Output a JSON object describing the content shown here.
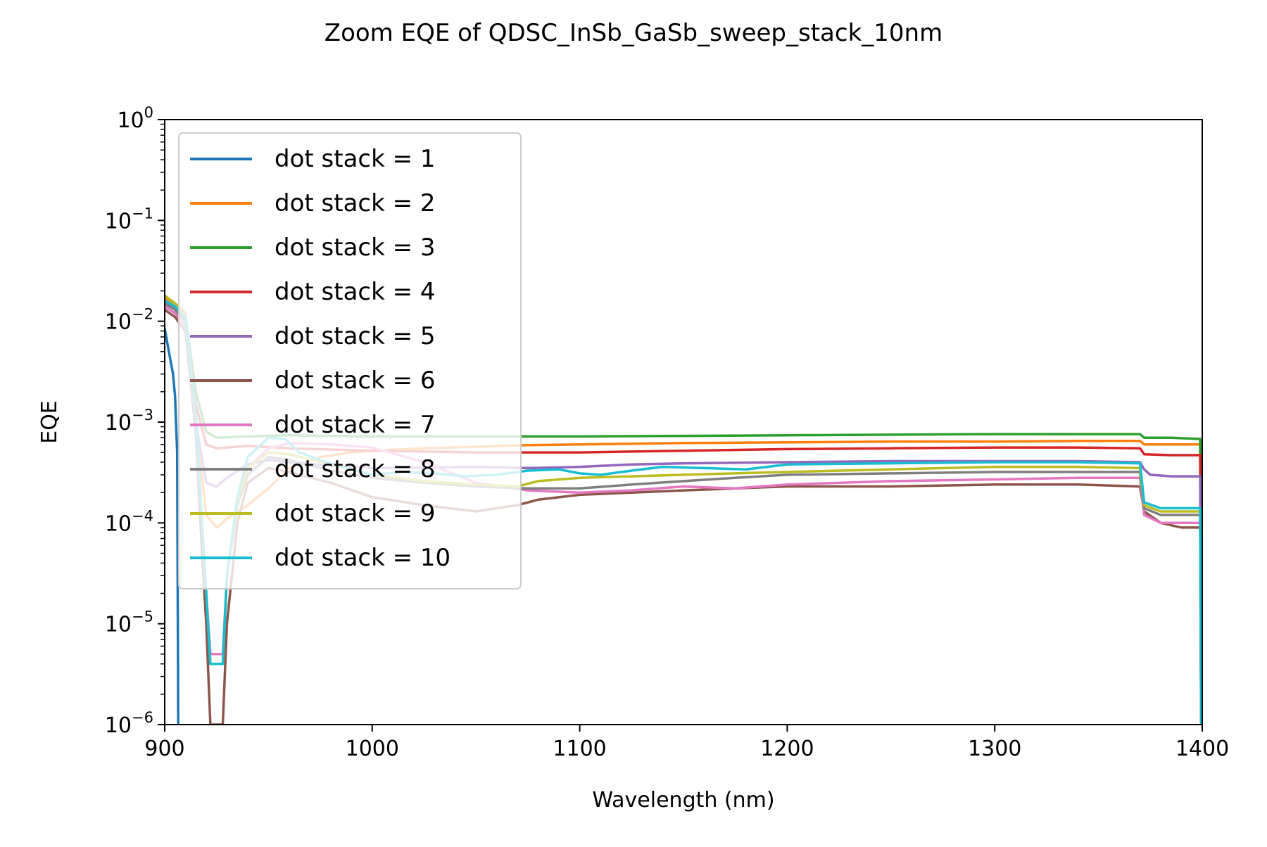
{
  "chart_data": {
    "type": "line",
    "title": "Zoom EQE of QDSC_InSb_GaSb_sweep_stack_10nm",
    "xlabel": "Wavelength (nm)",
    "ylabel": "EQE",
    "xlim": [
      900,
      1400
    ],
    "ylim": [
      1e-06,
      1
    ],
    "yscale": "log",
    "x_ticks": [
      900,
      1000,
      1100,
      1200,
      1300,
      1400
    ],
    "x_tick_labels": [
      "900",
      "1000",
      "1100",
      "1200",
      "1300",
      "1400"
    ],
    "y_ticks": [
      1e-06,
      1e-05,
      0.0001,
      0.001,
      0.01,
      0.1,
      1
    ],
    "y_tick_labels": [
      {
        "base": "10",
        "exp": "−6"
      },
      {
        "base": "10",
        "exp": "−5"
      },
      {
        "base": "10",
        "exp": "−4"
      },
      {
        "base": "10",
        "exp": "−3"
      },
      {
        "base": "10",
        "exp": "−2"
      },
      {
        "base": "10",
        "exp": "−1"
      },
      {
        "base": "10",
        "exp": "0"
      }
    ],
    "grid": false,
    "legend_position": "upper-left",
    "series": [
      {
        "name": "dot stack = 1",
        "color": "#1f77b4",
        "x": [
          900,
          902,
          904,
          905,
          906,
          906.5
        ],
        "y": [
          0.0085,
          0.005,
          0.003,
          0.0018,
          0.0005,
          1e-06
        ]
      },
      {
        "name": "dot stack = 2",
        "color": "#ff7f0e",
        "x": [
          900,
          905,
          910,
          915,
          920,
          925,
          930,
          940,
          950,
          960,
          975,
          990,
          1000,
          1025,
          1050,
          1075,
          1100,
          1125,
          1150,
          1200,
          1250,
          1300,
          1340,
          1370,
          1372,
          1385,
          1399,
          1399.5
        ],
        "y": [
          0.017,
          0.015,
          0.012,
          0.001,
          0.00012,
          9e-05,
          0.00011,
          0.00015,
          0.00022,
          0.00035,
          0.00045,
          0.0005,
          0.00052,
          0.00055,
          0.00057,
          0.00059,
          0.0006,
          0.00061,
          0.00062,
          0.00063,
          0.00064,
          0.00064,
          0.00065,
          0.00065,
          0.0006,
          0.0006,
          0.0006,
          1e-06
        ]
      },
      {
        "name": "dot stack = 3",
        "color": "#2ca02c",
        "x": [
          900,
          905,
          910,
          915,
          920,
          925,
          940,
          960,
          1000,
          1050,
          1100,
          1150,
          1200,
          1250,
          1300,
          1340,
          1370,
          1372,
          1385,
          1399,
          1399.5
        ],
        "y": [
          0.018,
          0.015,
          0.011,
          0.002,
          0.0008,
          0.0007,
          0.00072,
          0.00074,
          0.00072,
          0.00072,
          0.00072,
          0.00073,
          0.00074,
          0.00075,
          0.00076,
          0.00076,
          0.00076,
          0.0007,
          0.0007,
          0.00068,
          1e-06
        ]
      },
      {
        "name": "dot stack = 4",
        "color": "#d62728",
        "x": [
          900,
          905,
          910,
          915,
          920,
          925,
          940,
          960,
          1000,
          1050,
          1100,
          1150,
          1200,
          1250,
          1300,
          1340,
          1370,
          1372,
          1385,
          1399,
          1399.5
        ],
        "y": [
          0.015,
          0.013,
          0.01,
          0.0015,
          0.0006,
          0.00055,
          0.00058,
          0.00055,
          0.00052,
          0.0005,
          0.0005,
          0.00052,
          0.00054,
          0.00055,
          0.00056,
          0.00056,
          0.00055,
          0.00048,
          0.00047,
          0.00047,
          1e-06
        ]
      },
      {
        "name": "dot stack = 5",
        "color": "#9467bd",
        "x": [
          900,
          905,
          910,
          915,
          920,
          925,
          930,
          940,
          950,
          960,
          980,
          1000,
          1050,
          1075,
          1100,
          1125,
          1150,
          1200,
          1250,
          1300,
          1340,
          1370,
          1372,
          1375,
          1385,
          1399,
          1399.5
        ],
        "y": [
          0.016,
          0.013,
          0.01,
          0.001,
          0.00025,
          0.00023,
          0.00028,
          0.00038,
          0.00042,
          0.0004,
          0.00037,
          0.00035,
          0.00036,
          0.00035,
          0.00036,
          0.00038,
          0.00039,
          0.0004,
          0.00041,
          0.00041,
          0.00041,
          0.0004,
          0.00034,
          0.0003,
          0.00029,
          0.00029,
          1e-06
        ]
      },
      {
        "name": "dot stack = 6",
        "color": "#8c564b",
        "x": [
          900,
          905,
          910,
          915,
          918,
          920,
          922,
          924,
          926,
          928,
          930,
          935,
          940,
          950,
          960,
          980,
          1000,
          1025,
          1050,
          1060,
          1070,
          1080,
          1100,
          1125,
          1150,
          1175,
          1200,
          1250,
          1300,
          1340,
          1370,
          1372,
          1380,
          1390,
          1399,
          1399.5
        ],
        "y": [
          0.013,
          0.011,
          0.008,
          0.0008,
          5e-05,
          1e-05,
          1e-06,
          1e-06,
          1e-06,
          1e-06,
          1e-05,
          0.0001,
          0.00025,
          0.00035,
          0.00032,
          0.00025,
          0.00018,
          0.00015,
          0.00013,
          0.00014,
          0.00015,
          0.00017,
          0.00019,
          0.0002,
          0.00021,
          0.00022,
          0.00023,
          0.00023,
          0.00024,
          0.00024,
          0.00023,
          0.00013,
          0.0001,
          9e-05,
          9e-05,
          1e-06
        ]
      },
      {
        "name": "dot stack = 7",
        "color": "#e377c2",
        "x": [
          900,
          905,
          910,
          915,
          918,
          920,
          922,
          925,
          928,
          930,
          935,
          940,
          950,
          960,
          980,
          1000,
          1025,
          1050,
          1075,
          1100,
          1125,
          1150,
          1175,
          1200,
          1250,
          1300,
          1340,
          1370,
          1372,
          1380,
          1390,
          1399,
          1399.5
        ],
        "y": [
          0.014,
          0.012,
          0.009,
          0.001,
          0.0001,
          2e-05,
          5e-06,
          5e-06,
          5e-06,
          3e-05,
          0.00015,
          0.00035,
          0.00055,
          0.00062,
          0.0006,
          0.00056,
          0.0004,
          0.00025,
          0.00021,
          0.0002,
          0.00021,
          0.00023,
          0.00022,
          0.00024,
          0.00026,
          0.00027,
          0.00028,
          0.00028,
          0.00012,
          0.0001,
          0.0001,
          0.0001,
          1e-06
        ]
      },
      {
        "name": "dot stack = 8",
        "color": "#7f7f7f",
        "x": [
          900,
          905,
          910,
          915,
          918,
          920,
          922,
          925,
          928,
          930,
          935,
          940,
          950,
          960,
          980,
          1000,
          1025,
          1050,
          1075,
          1100,
          1125,
          1150,
          1175,
          1200,
          1250,
          1300,
          1340,
          1370,
          1372,
          1380,
          1390,
          1399,
          1399.5
        ],
        "y": [
          0.015,
          0.013,
          0.01,
          0.0012,
          0.0001,
          2e-05,
          4e-06,
          4e-06,
          4e-06,
          3e-05,
          0.00015,
          0.0003,
          0.00045,
          0.00042,
          0.00033,
          0.00028,
          0.00025,
          0.00023,
          0.00022,
          0.00022,
          0.00024,
          0.00026,
          0.00028,
          0.0003,
          0.00031,
          0.00032,
          0.00032,
          0.00032,
          0.00014,
          0.00012,
          0.00012,
          0.00012,
          1e-06
        ]
      },
      {
        "name": "dot stack = 9",
        "color": "#bcbd22",
        "x": [
          900,
          905,
          910,
          915,
          918,
          920,
          922,
          925,
          928,
          930,
          935,
          940,
          950,
          960,
          980,
          1000,
          1025,
          1050,
          1070,
          1080,
          1100,
          1125,
          1150,
          1200,
          1250,
          1300,
          1340,
          1370,
          1372,
          1380,
          1390,
          1399,
          1399.5
        ],
        "y": [
          0.018,
          0.015,
          0.011,
          0.0012,
          0.0001,
          2e-05,
          4e-06,
          4e-06,
          4e-06,
          3e-05,
          0.00016,
          0.00035,
          0.0005,
          0.00048,
          0.00038,
          0.0003,
          0.00026,
          0.00024,
          0.00023,
          0.00026,
          0.00028,
          0.00029,
          0.0003,
          0.00032,
          0.00034,
          0.00036,
          0.00036,
          0.00035,
          0.00015,
          0.00013,
          0.00013,
          0.00013,
          1e-06
        ]
      },
      {
        "name": "dot stack = 10",
        "color": "#17becf",
        "x": [
          900,
          905,
          910,
          915,
          918,
          920,
          922,
          925,
          928,
          930,
          935,
          940,
          950,
          958,
          965,
          975,
          990,
          1000,
          1015,
          1030,
          1045,
          1060,
          1075,
          1090,
          1100,
          1110,
          1125,
          1140,
          1160,
          1180,
          1200,
          1250,
          1300,
          1340,
          1370,
          1372,
          1380,
          1390,
          1399,
          1399.5
        ],
        "y": [
          0.016,
          0.014,
          0.011,
          0.0012,
          0.0001,
          2e-05,
          4e-06,
          4e-06,
          4e-06,
          3e-05,
          0.00018,
          0.00045,
          0.0007,
          0.00068,
          0.0005,
          0.00042,
          0.00034,
          0.0003,
          0.00032,
          0.00031,
          0.00029,
          0.0003,
          0.00033,
          0.00034,
          0.00031,
          0.0003,
          0.00033,
          0.00036,
          0.00035,
          0.00034,
          0.00038,
          0.00039,
          0.0004,
          0.0004,
          0.00039,
          0.00016,
          0.00014,
          0.00014,
          0.00014,
          1e-06
        ]
      }
    ]
  }
}
